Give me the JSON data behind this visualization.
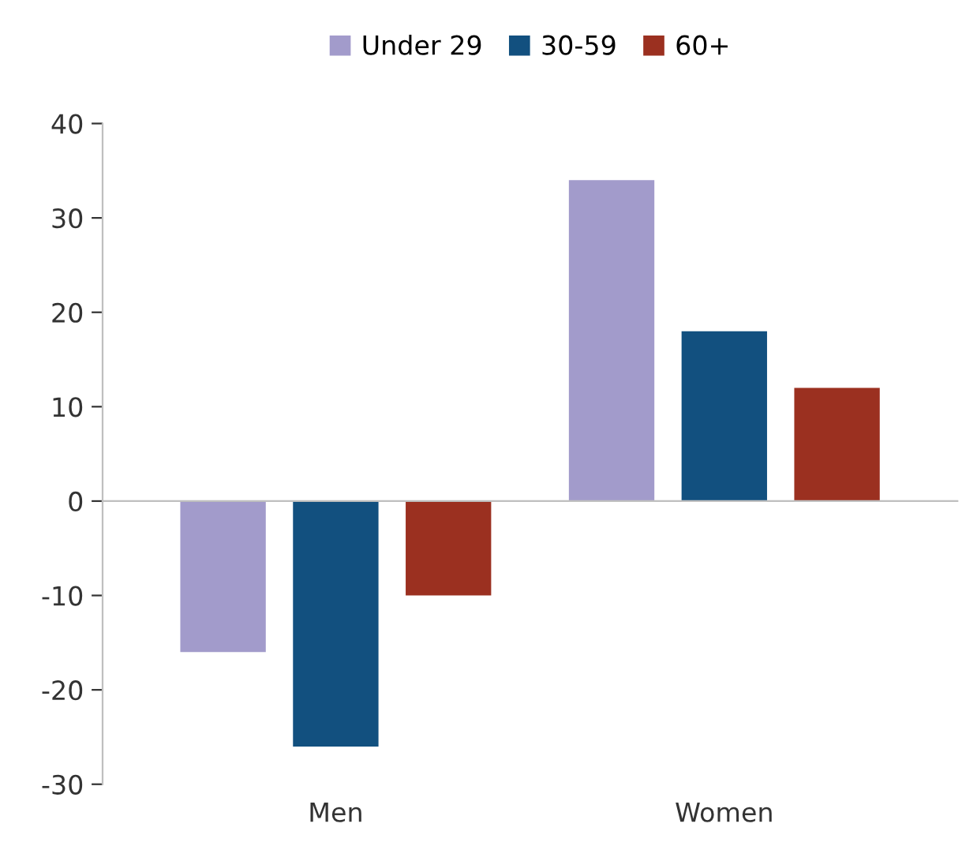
{
  "chart_data": {
    "type": "bar",
    "categories": [
      "Men",
      "Women"
    ],
    "series": [
      {
        "name": "Under 29",
        "color": "#a29bcb",
        "values": [
          -16,
          34
        ]
      },
      {
        "name": "30-59",
        "color": "#12507f",
        "values": [
          -26,
          18
        ]
      },
      {
        "name": "60+",
        "color": "#9b3020",
        "values": [
          -10,
          12
        ]
      }
    ],
    "ylim": [
      -30,
      40
    ],
    "yticks": [
      -30,
      -20,
      -10,
      0,
      10,
      20,
      30,
      40
    ],
    "legend": "top"
  }
}
